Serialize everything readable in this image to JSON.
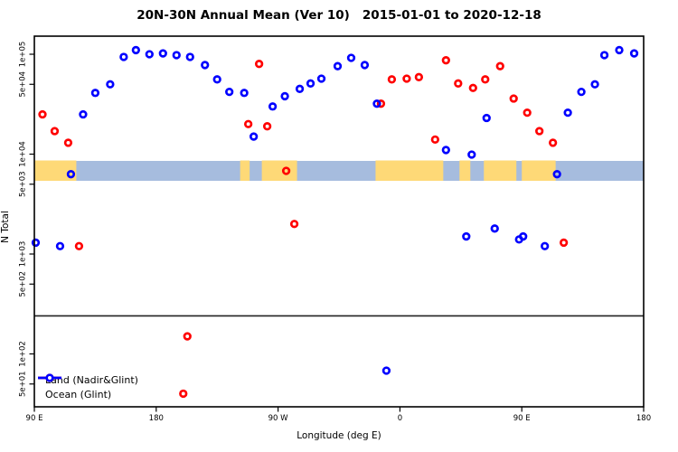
{
  "title": "20N-30N Annual Mean (Ver 10)   2015-01-01 to 2020-12-18",
  "chart_data": {
    "type": "scatter",
    "title": "20N-30N Annual Mean (Ver 10)   2015-01-01 to 2020-12-18",
    "xlabel": "Longitude (deg E)",
    "ylabel": "N Total",
    "x_axis": {
      "range_deg": [
        0,
        450
      ],
      "note": "longitude axis wraps 1.25 times around the globe starting at 90E",
      "ticks": [
        {
          "label": "90 E",
          "deg": 0
        },
        {
          "label": "180",
          "deg": 90
        },
        {
          "label": "90 W",
          "deg": 180
        },
        {
          "label": "0",
          "deg": 270
        },
        {
          "label": "90 E",
          "deg": 360
        },
        {
          "label": "180",
          "deg": 450
        }
      ]
    },
    "y_axis": {
      "scale": "log",
      "range": [
        31,
        160000
      ],
      "ticks": [
        {
          "label": "1e+05",
          "value": 100000
        },
        {
          "label": "5e+04",
          "value": 50000
        },
        {
          "label": "1e+04",
          "value": 10000
        },
        {
          "label": "5e+03",
          "value": 5000
        },
        {
          "label": "1e+03",
          "value": 1000
        },
        {
          "label": "5e+02",
          "value": 500
        },
        {
          "label": "1e+02",
          "value": 100
        },
        {
          "label": "5e+01",
          "value": 50
        }
      ]
    },
    "divider_value": 240,
    "map_band": {
      "ocean_color": "#a6bcde",
      "land_color": "#fed977",
      "value_range": [
        5400,
        8500
      ],
      "land_segments_deg": [
        [
          0,
          31
        ],
        [
          152,
          159
        ],
        [
          168,
          194
        ],
        [
          252,
          302
        ],
        [
          314,
          322
        ],
        [
          332,
          356
        ],
        [
          360,
          385
        ]
      ]
    },
    "series": [
      {
        "name": "Land (Nadir&Glint)",
        "color": "#ff0000",
        "points": [
          {
            "deg": 6,
            "n": 25000
          },
          {
            "deg": 15,
            "n": 17000
          },
          {
            "deg": 25,
            "n": 13000
          },
          {
            "deg": 33,
            "n": 1200
          },
          {
            "deg": 110,
            "n": 40
          },
          {
            "deg": 113,
            "n": 150
          },
          {
            "deg": 158,
            "n": 20000
          },
          {
            "deg": 166,
            "n": 80000
          },
          {
            "deg": 172,
            "n": 19000
          },
          {
            "deg": 186,
            "n": 6800
          },
          {
            "deg": 192,
            "n": 2000
          },
          {
            "deg": 256,
            "n": 32000
          },
          {
            "deg": 264,
            "n": 56000
          },
          {
            "deg": 275,
            "n": 57000
          },
          {
            "deg": 284,
            "n": 59000
          },
          {
            "deg": 296,
            "n": 14000
          },
          {
            "deg": 304,
            "n": 87000
          },
          {
            "deg": 313,
            "n": 51000
          },
          {
            "deg": 324,
            "n": 46000
          },
          {
            "deg": 333,
            "n": 56000
          },
          {
            "deg": 344,
            "n": 76000
          },
          {
            "deg": 354,
            "n": 36000
          },
          {
            "deg": 364,
            "n": 26000
          },
          {
            "deg": 373,
            "n": 17000
          },
          {
            "deg": 383,
            "n": 13000
          },
          {
            "deg": 391,
            "n": 1300
          }
        ]
      },
      {
        "name": "Ocean (Glint)",
        "color": "#0000ff",
        "points": [
          {
            "deg": 1,
            "n": 1300
          },
          {
            "deg": 19,
            "n": 1200
          },
          {
            "deg": 27,
            "n": 6300
          },
          {
            "deg": 36,
            "n": 25000
          },
          {
            "deg": 45,
            "n": 41000
          },
          {
            "deg": 56,
            "n": 50000
          },
          {
            "deg": 66,
            "n": 94000
          },
          {
            "deg": 75,
            "n": 110000
          },
          {
            "deg": 85,
            "n": 100000
          },
          {
            "deg": 95,
            "n": 102000
          },
          {
            "deg": 105,
            "n": 98000
          },
          {
            "deg": 115,
            "n": 94000
          },
          {
            "deg": 126,
            "n": 78000
          },
          {
            "deg": 135,
            "n": 56000
          },
          {
            "deg": 144,
            "n": 42000
          },
          {
            "deg": 155,
            "n": 41000
          },
          {
            "deg": 162,
            "n": 15000
          },
          {
            "deg": 176,
            "n": 30000
          },
          {
            "deg": 185,
            "n": 38000
          },
          {
            "deg": 196,
            "n": 45000
          },
          {
            "deg": 204,
            "n": 51000
          },
          {
            "deg": 212,
            "n": 57000
          },
          {
            "deg": 224,
            "n": 76000
          },
          {
            "deg": 234,
            "n": 92000
          },
          {
            "deg": 244,
            "n": 78000
          },
          {
            "deg": 253,
            "n": 32000
          },
          {
            "deg": 260,
            "n": 68
          },
          {
            "deg": 304,
            "n": 11000
          },
          {
            "deg": 319,
            "n": 1500
          },
          {
            "deg": 323,
            "n": 9900
          },
          {
            "deg": 334,
            "n": 23000
          },
          {
            "deg": 340,
            "n": 1800
          },
          {
            "deg": 358,
            "n": 1400
          },
          {
            "deg": 361,
            "n": 1500
          },
          {
            "deg": 377,
            "n": 1200
          },
          {
            "deg": 386,
            "n": 6300
          },
          {
            "deg": 394,
            "n": 26000
          },
          {
            "deg": 404,
            "n": 42000
          },
          {
            "deg": 414,
            "n": 50000
          },
          {
            "deg": 421,
            "n": 98000
          },
          {
            "deg": 432,
            "n": 110000
          },
          {
            "deg": 443,
            "n": 102000
          }
        ]
      }
    ]
  },
  "legend": {
    "items": [
      {
        "label": "Land (Nadir&Glint)",
        "color": "#ff0000"
      },
      {
        "label": "Ocean (Glint)",
        "color": "#0000ff"
      }
    ]
  }
}
